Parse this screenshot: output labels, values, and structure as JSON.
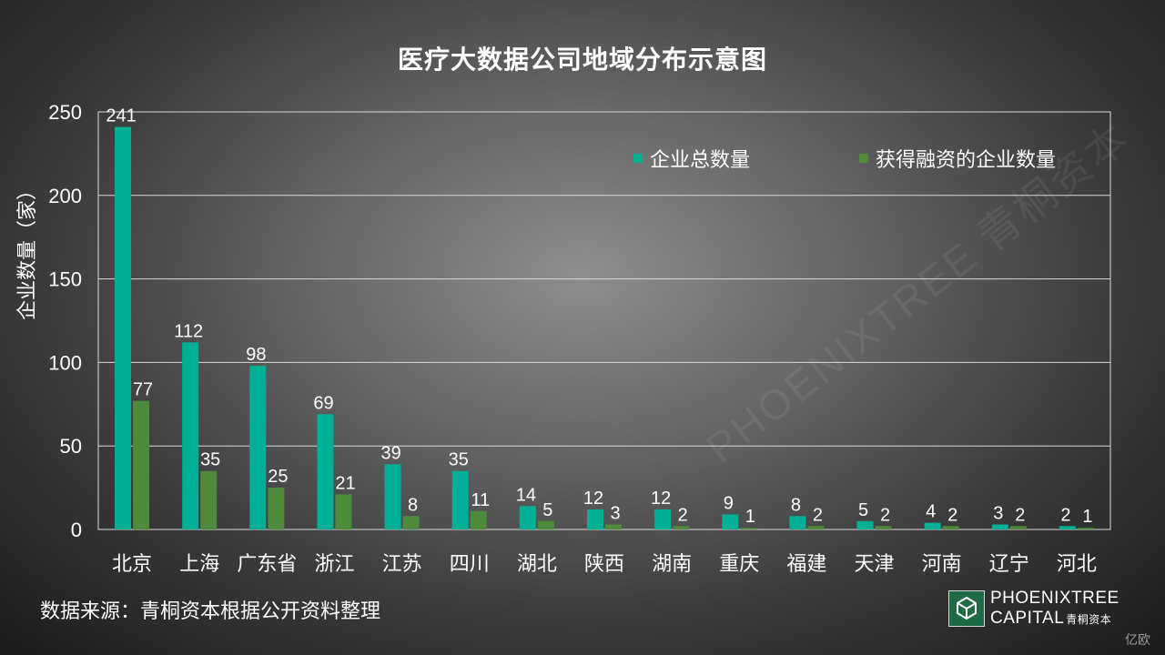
{
  "chart_data": {
    "type": "bar",
    "title": "医疗大数据公司地域分布示意图",
    "xlabel": "",
    "ylabel": "企业数量（家）",
    "ylim": [
      0,
      250
    ],
    "yticks": [
      0,
      50,
      100,
      150,
      200,
      250
    ],
    "grid": true,
    "legend_position": "top-right",
    "categories": [
      "北京",
      "上海",
      "广东省",
      "浙江",
      "江苏",
      "四川",
      "湖北",
      "陕西",
      "湖南",
      "重庆",
      "福建",
      "天津",
      "河南",
      "辽宁",
      "河北"
    ],
    "series": [
      {
        "name": "企业总数量",
        "color": "#00b096",
        "values": [
          241,
          112,
          98,
          69,
          39,
          35,
          14,
          12,
          12,
          9,
          8,
          5,
          4,
          3,
          2
        ]
      },
      {
        "name": "获得融资的企业数量",
        "color": "#4f8a3c",
        "values": [
          77,
          35,
          25,
          21,
          8,
          11,
          5,
          3,
          2,
          1,
          2,
          2,
          2,
          2,
          1
        ]
      }
    ]
  },
  "footer": {
    "source": "数据来源：青桐资本根据公开资料整理"
  },
  "logo": {
    "line1": "PHOENIXTREE",
    "line2": "CAPITAL",
    "cn": "青桐资本"
  },
  "watermark": {
    "corner": "亿欧",
    "background": "PHOENIXTREE 青桐资本"
  }
}
